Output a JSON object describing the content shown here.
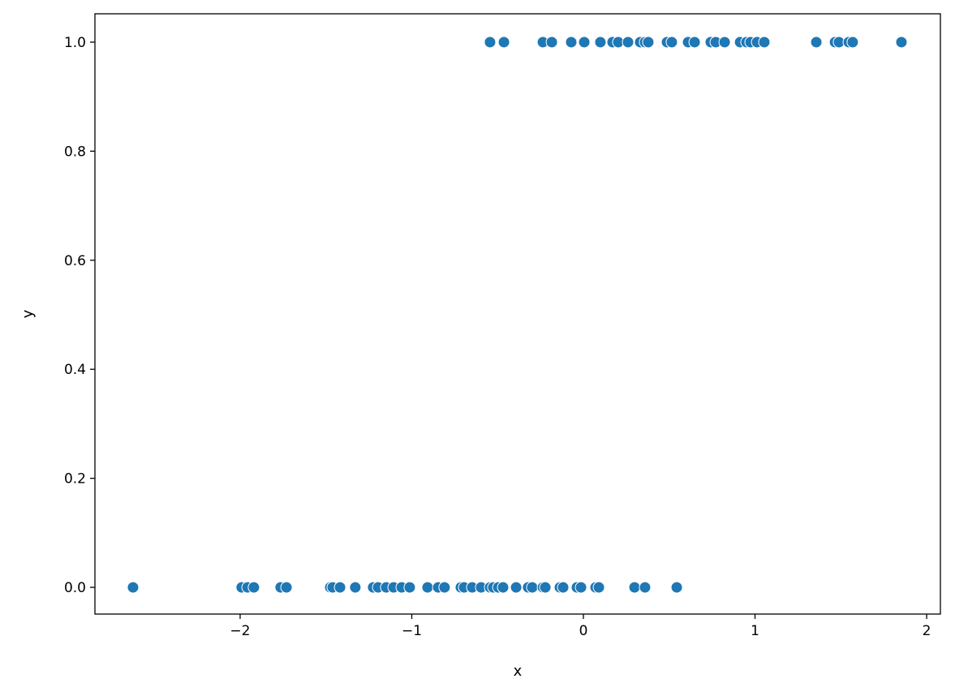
{
  "chart_data": {
    "type": "scatter",
    "title": "",
    "xlabel": "x",
    "ylabel": "y",
    "xlim": [
      -2.846,
      2.08
    ],
    "ylim": [
      -0.049,
      1.052
    ],
    "xticks": [
      -2,
      -1,
      0,
      1,
      2
    ],
    "xtick_labels": [
      "−2",
      "−1",
      "0",
      "1",
      "2"
    ],
    "yticks": [
      0.0,
      0.2,
      0.4,
      0.6,
      0.8,
      1.0
    ],
    "ytick_labels": [
      "0.0",
      "0.2",
      "0.4",
      "0.6",
      "0.8",
      "1.0"
    ],
    "grid": false,
    "marker_color": "#1f77b4",
    "series": [
      {
        "x": [
          -0.544,
          -0.463,
          -0.236,
          -0.184,
          -0.071,
          0.005,
          0.099,
          0.17,
          0.203,
          0.26,
          0.331,
          0.359,
          0.378,
          0.487,
          0.515,
          0.61,
          0.648,
          0.742,
          0.771,
          0.823,
          0.913,
          0.95,
          0.974,
          1.012,
          1.054,
          1.357,
          1.466,
          1.489,
          1.546,
          1.569,
          1.853
        ],
        "y": 1
      },
      {
        "x": [
          -2.624,
          -1.991,
          -1.957,
          -1.92,
          -1.764,
          -1.73,
          -1.475,
          -1.461,
          -1.418,
          -1.329,
          -1.225,
          -1.196,
          -1.149,
          -1.106,
          -1.059,
          -1.012,
          -0.908,
          -0.846,
          -0.809,
          -0.714,
          -0.695,
          -0.648,
          -0.596,
          -0.544,
          -0.525,
          -0.496,
          -0.468,
          -0.392,
          -0.322,
          -0.298,
          -0.236,
          -0.222,
          -0.137,
          -0.118,
          -0.038,
          -0.014,
          0.071,
          0.09,
          0.298,
          0.359,
          0.544
        ],
        "y": 0
      }
    ]
  }
}
